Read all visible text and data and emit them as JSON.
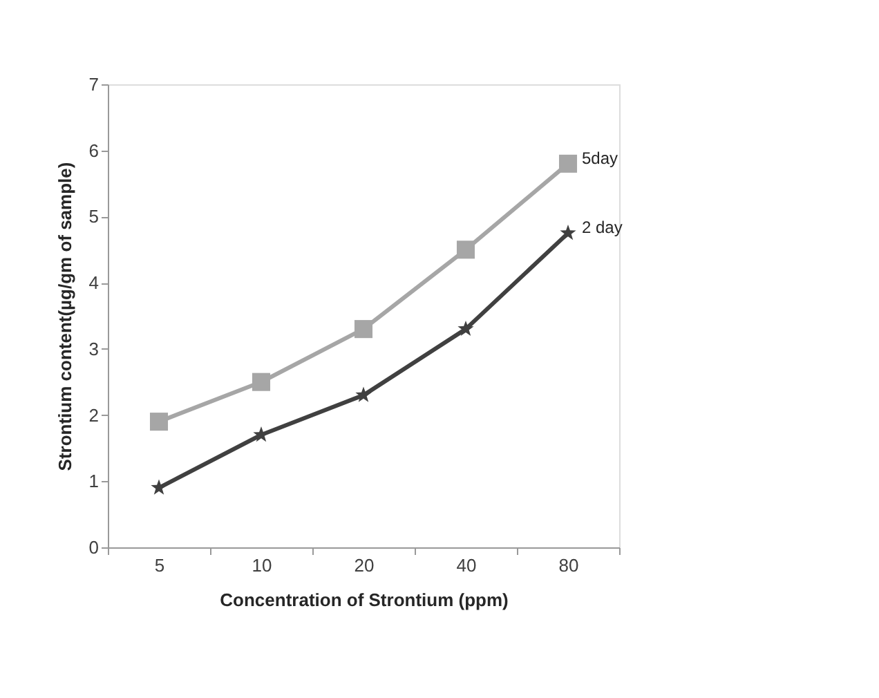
{
  "chart_data": {
    "type": "line",
    "xlabel": "Concentration of Strontium (ppm)",
    "ylabel": "Strontium content(µg/gm of sample)",
    "categories": [
      "5",
      "10",
      "20",
      "40",
      "80"
    ],
    "series": [
      {
        "name": "5day",
        "color": "#a6a6a6",
        "marker": "square",
        "values": [
          1.9,
          2.5,
          3.3,
          4.5,
          5.8
        ]
      },
      {
        "name": "2 day",
        "color": "#404040",
        "marker": "star",
        "values": [
          0.9,
          1.7,
          2.3,
          3.3,
          4.75
        ]
      }
    ],
    "ylim": [
      0,
      7
    ],
    "yticks": [
      0,
      1,
      2,
      3,
      4,
      5,
      6,
      7
    ],
    "grid": false,
    "legend": false,
    "line_style": "solid"
  }
}
